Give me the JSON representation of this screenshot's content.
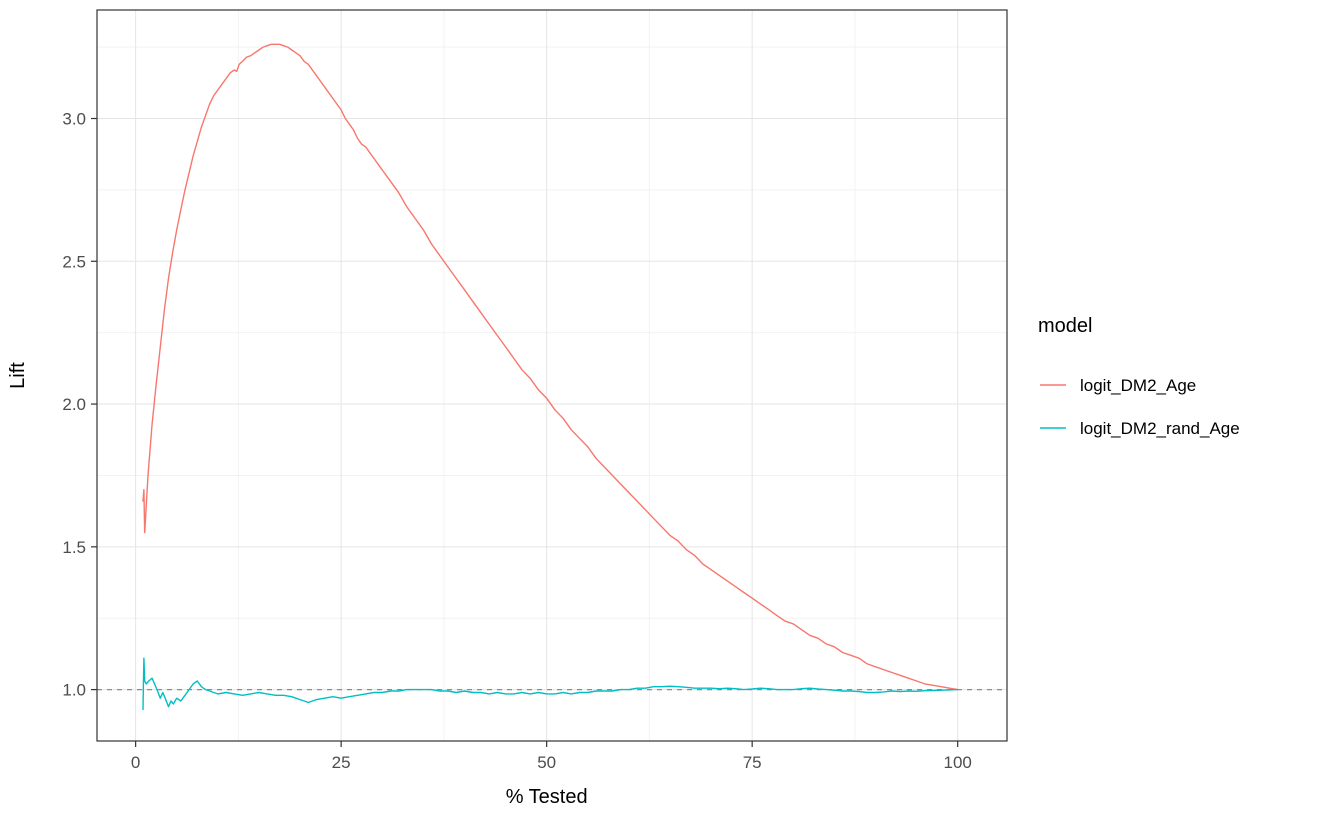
{
  "figure": {
    "background": "#FFFFFF"
  },
  "chart_data": {
    "type": "line",
    "title": "",
    "xlabel": "% Tested",
    "ylabel": "Lift",
    "x_ticks": [
      0,
      25,
      50,
      75,
      100
    ],
    "x_tick_labels": [
      "0",
      "25",
      "50",
      "75",
      "100"
    ],
    "y_ticks": [
      1.0,
      1.5,
      2.0,
      2.5,
      3.0
    ],
    "y_tick_labels": [
      "1.0",
      "1.5",
      "2.0",
      "2.5",
      "3.0"
    ],
    "x_range": [
      -4.7,
      106.0
    ],
    "y_range": [
      0.82,
      3.38
    ],
    "grid": true,
    "panel": {
      "background": "#FFFFFF",
      "border_color": "#333333",
      "grid_major_color": "#E5E5E5",
      "grid_minor_color": "#F2F2F2"
    },
    "reference_line": {
      "y": 1.0,
      "style": "dashed",
      "color": "#8C8C8C"
    },
    "legend": {
      "title": "model",
      "position": "right",
      "items": [
        {
          "label": "logit_DM2_Age",
          "color": "#F8766D"
        },
        {
          "label": "logit_DM2_rand_Age",
          "color": "#00BFC4"
        }
      ]
    },
    "series": [
      {
        "name": "logit_DM2_Age",
        "color": "#F8766D",
        "points": [
          [
            0.9,
            1.66
          ],
          [
            1.0,
            1.7
          ],
          [
            1.05,
            1.62
          ],
          [
            1.1,
            1.55
          ],
          [
            1.5,
            1.75
          ],
          [
            2,
            1.93
          ],
          [
            2.5,
            2.07
          ],
          [
            3,
            2.2
          ],
          [
            3.5,
            2.33
          ],
          [
            4,
            2.44
          ],
          [
            4.5,
            2.53
          ],
          [
            5,
            2.61
          ],
          [
            5.5,
            2.68
          ],
          [
            6,
            2.75
          ],
          [
            6.5,
            2.81
          ],
          [
            7,
            2.87
          ],
          [
            7.5,
            2.92
          ],
          [
            8,
            2.97
          ],
          [
            8.5,
            3.01
          ],
          [
            9,
            3.05
          ],
          [
            9.5,
            3.08
          ],
          [
            10,
            3.1
          ],
          [
            10.5,
            3.12
          ],
          [
            11,
            3.14
          ],
          [
            11.5,
            3.16
          ],
          [
            12,
            3.17
          ],
          [
            12.3,
            3.165
          ],
          [
            12.6,
            3.19
          ],
          [
            13,
            3.2
          ],
          [
            13.5,
            3.215
          ],
          [
            14,
            3.22
          ],
          [
            14.5,
            3.23
          ],
          [
            15,
            3.24
          ],
          [
            15.5,
            3.25
          ],
          [
            16,
            3.255
          ],
          [
            16.5,
            3.26
          ],
          [
            17,
            3.26
          ],
          [
            17.5,
            3.26
          ],
          [
            18,
            3.255
          ],
          [
            18.5,
            3.25
          ],
          [
            19,
            3.24
          ],
          [
            19.5,
            3.23
          ],
          [
            20,
            3.22
          ],
          [
            20.5,
            3.2
          ],
          [
            21,
            3.19
          ],
          [
            21.5,
            3.17
          ],
          [
            22,
            3.15
          ],
          [
            22.5,
            3.13
          ],
          [
            23,
            3.11
          ],
          [
            23.5,
            3.09
          ],
          [
            24,
            3.07
          ],
          [
            24.5,
            3.05
          ],
          [
            25,
            3.03
          ],
          [
            25.5,
            3.0
          ],
          [
            26,
            2.98
          ],
          [
            26.5,
            2.96
          ],
          [
            27,
            2.93
          ],
          [
            27.5,
            2.91
          ],
          [
            28,
            2.9
          ],
          [
            28.5,
            2.88
          ],
          [
            29,
            2.86
          ],
          [
            29.5,
            2.84
          ],
          [
            30,
            2.82
          ],
          [
            31,
            2.78
          ],
          [
            32,
            2.74
          ],
          [
            33,
            2.69
          ],
          [
            34,
            2.65
          ],
          [
            35,
            2.61
          ],
          [
            36,
            2.56
          ],
          [
            37,
            2.52
          ],
          [
            38,
            2.48
          ],
          [
            39,
            2.44
          ],
          [
            40,
            2.4
          ],
          [
            41,
            2.36
          ],
          [
            42,
            2.32
          ],
          [
            43,
            2.28
          ],
          [
            44,
            2.24
          ],
          [
            45,
            2.2
          ],
          [
            46,
            2.16
          ],
          [
            47,
            2.12
          ],
          [
            48,
            2.09
          ],
          [
            49,
            2.05
          ],
          [
            50,
            2.02
          ],
          [
            51,
            1.98
          ],
          [
            52,
            1.95
          ],
          [
            53,
            1.91
          ],
          [
            54,
            1.88
          ],
          [
            55,
            1.85
          ],
          [
            56,
            1.81
          ],
          [
            57,
            1.78
          ],
          [
            58,
            1.75
          ],
          [
            59,
            1.72
          ],
          [
            60,
            1.69
          ],
          [
            61,
            1.66
          ],
          [
            62,
            1.63
          ],
          [
            63,
            1.6
          ],
          [
            64,
            1.57
          ],
          [
            65,
            1.54
          ],
          [
            66,
            1.52
          ],
          [
            67,
            1.49
          ],
          [
            68,
            1.47
          ],
          [
            69,
            1.44
          ],
          [
            70,
            1.42
          ],
          [
            71,
            1.4
          ],
          [
            72,
            1.38
          ],
          [
            73,
            1.36
          ],
          [
            74,
            1.34
          ],
          [
            75,
            1.32
          ],
          [
            76,
            1.3
          ],
          [
            77,
            1.28
          ],
          [
            78,
            1.26
          ],
          [
            79,
            1.24
          ],
          [
            80,
            1.23
          ],
          [
            81,
            1.21
          ],
          [
            82,
            1.19
          ],
          [
            83,
            1.18
          ],
          [
            84,
            1.16
          ],
          [
            85,
            1.15
          ],
          [
            86,
            1.13
          ],
          [
            87,
            1.12
          ],
          [
            88,
            1.11
          ],
          [
            89,
            1.09
          ],
          [
            90,
            1.08
          ],
          [
            91,
            1.07
          ],
          [
            92,
            1.06
          ],
          [
            93,
            1.05
          ],
          [
            94,
            1.04
          ],
          [
            95,
            1.03
          ],
          [
            96,
            1.02
          ],
          [
            97,
            1.015
          ],
          [
            98,
            1.01
          ],
          [
            99,
            1.005
          ],
          [
            100,
            1.0
          ]
        ]
      },
      {
        "name": "logit_DM2_rand_Age",
        "color": "#00BFC4",
        "points": [
          [
            0.9,
            0.93
          ],
          [
            0.95,
            1.02
          ],
          [
            1.0,
            1.11
          ],
          [
            1.1,
            1.03
          ],
          [
            1.3,
            1.02
          ],
          [
            1.6,
            1.03
          ],
          [
            2,
            1.04
          ],
          [
            2.3,
            1.02
          ],
          [
            2.6,
            1.0
          ],
          [
            3,
            0.97
          ],
          [
            3.3,
            0.99
          ],
          [
            3.6,
            0.97
          ],
          [
            4,
            0.94
          ],
          [
            4.3,
            0.96
          ],
          [
            4.6,
            0.95
          ],
          [
            5,
            0.97
          ],
          [
            5.5,
            0.96
          ],
          [
            6,
            0.98
          ],
          [
            6.5,
            1.0
          ],
          [
            7,
            1.02
          ],
          [
            7.5,
            1.03
          ],
          [
            8,
            1.01
          ],
          [
            8.5,
            1.0
          ],
          [
            9,
            0.995
          ],
          [
            9.5,
            0.99
          ],
          [
            10,
            0.985
          ],
          [
            11,
            0.99
          ],
          [
            12,
            0.985
          ],
          [
            13,
            0.98
          ],
          [
            14,
            0.985
          ],
          [
            15,
            0.99
          ],
          [
            16,
            0.985
          ],
          [
            17,
            0.98
          ],
          [
            18,
            0.98
          ],
          [
            19,
            0.975
          ],
          [
            20,
            0.965
          ],
          [
            20.5,
            0.96
          ],
          [
            21,
            0.955
          ],
          [
            21.5,
            0.96
          ],
          [
            22,
            0.965
          ],
          [
            23,
            0.97
          ],
          [
            24,
            0.975
          ],
          [
            25,
            0.97
          ],
          [
            26,
            0.975
          ],
          [
            27,
            0.98
          ],
          [
            28,
            0.985
          ],
          [
            29,
            0.99
          ],
          [
            30,
            0.99
          ],
          [
            31,
            0.995
          ],
          [
            32,
            0.995
          ],
          [
            33,
            1.0
          ],
          [
            34,
            1.0
          ],
          [
            35,
            1.0
          ],
          [
            36,
            1.0
          ],
          [
            37,
            0.995
          ],
          [
            38,
            0.995
          ],
          [
            39,
            0.99
          ],
          [
            40,
            0.995
          ],
          [
            41,
            0.99
          ],
          [
            42,
            0.99
          ],
          [
            43,
            0.985
          ],
          [
            44,
            0.99
          ],
          [
            45,
            0.985
          ],
          [
            46,
            0.985
          ],
          [
            47,
            0.99
          ],
          [
            48,
            0.985
          ],
          [
            49,
            0.99
          ],
          [
            50,
            0.985
          ],
          [
            51,
            0.985
          ],
          [
            52,
            0.99
          ],
          [
            53,
            0.985
          ],
          [
            54,
            0.99
          ],
          [
            55,
            0.99
          ],
          [
            56,
            0.995
          ],
          [
            57,
            0.995
          ],
          [
            58,
            0.995
          ],
          [
            59,
            1.0
          ],
          [
            60,
            1.0
          ],
          [
            61,
            1.005
          ],
          [
            62,
            1.005
          ],
          [
            63,
            1.01
          ],
          [
            64,
            1.01
          ],
          [
            65,
            1.012
          ],
          [
            66,
            1.01
          ],
          [
            67,
            1.008
          ],
          [
            68,
            1.005
          ],
          [
            69,
            1.005
          ],
          [
            70,
            1.005
          ],
          [
            71,
            1.003
          ],
          [
            72,
            1.005
          ],
          [
            73,
            1.003
          ],
          [
            74,
            1.0
          ],
          [
            75,
            1.002
          ],
          [
            76,
            1.005
          ],
          [
            77,
            1.003
          ],
          [
            78,
            1.0
          ],
          [
            79,
            1.0
          ],
          [
            80,
            1.0
          ],
          [
            81,
            1.003
          ],
          [
            82,
            1.005
          ],
          [
            83,
            1.002
          ],
          [
            84,
            1.0
          ],
          [
            85,
            0.998
          ],
          [
            86,
            0.995
          ],
          [
            87,
            0.995
          ],
          [
            88,
            0.993
          ],
          [
            89,
            0.99
          ],
          [
            90,
            0.99
          ],
          [
            91,
            0.992
          ],
          [
            92,
            0.995
          ],
          [
            93,
            0.993
          ],
          [
            94,
            0.995
          ],
          [
            95,
            0.994
          ],
          [
            96,
            0.996
          ],
          [
            97,
            0.997
          ],
          [
            98,
            0.998
          ],
          [
            99,
            0.999
          ],
          [
            100,
            1.0
          ]
        ]
      }
    ]
  }
}
